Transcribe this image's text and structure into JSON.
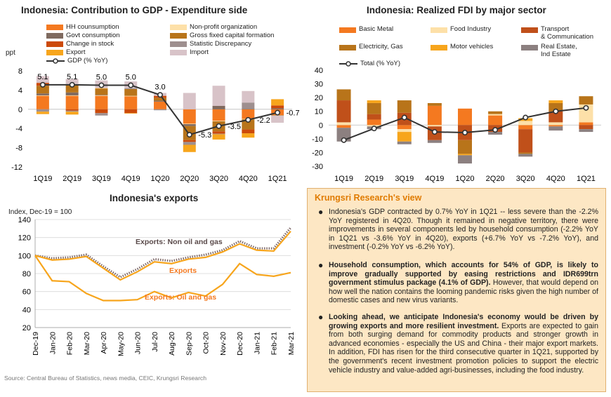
{
  "gdp": {
    "title": "Indonesia: Contribution to GDP - Expenditure side",
    "yunit": "ppt",
    "yticks": [
      8,
      4,
      0,
      -4,
      -8,
      -12
    ],
    "categories": [
      "1Q19",
      "2Q19",
      "3Q19",
      "4Q19",
      "1Q20",
      "2Q20",
      "3Q20",
      "4Q20",
      "1Q21"
    ],
    "legend": [
      {
        "name": "HH counsumption",
        "color": "#f47920"
      },
      {
        "name": "Non-profit organization",
        "color": "#fde0a8"
      },
      {
        "name": "Govt consumption",
        "color": "#7f6a5f"
      },
      {
        "name": "Gross fixed capital formation",
        "color": "#b8741a"
      },
      {
        "name": "Change in stock",
        "color": "#cc4a0a"
      },
      {
        "name": "Statistic Discrepancy",
        "color": "#9e8f8f"
      },
      {
        "name": "Export",
        "color": "#f7a51c"
      },
      {
        "name": "Import",
        "color": "#d8c3c8"
      }
    ],
    "line_legend": "GDP (% YoY)",
    "line_labels": [
      "5.1",
      "5.1",
      "5.0",
      "5.0",
      "3.0",
      "-5.3",
      "-3.5",
      "-2.2",
      "-0.7"
    ]
  },
  "fdi": {
    "title": "Indonesia: Realized FDI by major sector",
    "yticks": [
      40,
      30,
      20,
      10,
      0,
      -10,
      -20,
      -30
    ],
    "categories": [
      "1Q19",
      "2Q19",
      "3Q19",
      "4Q19",
      "1Q20",
      "2Q20",
      "3Q20",
      "4Q20",
      "1Q21"
    ],
    "legend": [
      {
        "name": "Basic Metal",
        "color": "#f47920"
      },
      {
        "name": "Food Industry",
        "color": "#fde0a8"
      },
      {
        "name": "Transport",
        "name2": "& Communication",
        "color": "#c0501a"
      },
      {
        "name": "Electricity, Gas",
        "color": "#b8741a"
      },
      {
        "name": "Motor vehicles",
        "color": "#f7a51c"
      },
      {
        "name": "Real Estate,",
        "name2": "Ind Estate",
        "color": "#8c8080"
      }
    ],
    "line_legend": "Total (% YoY)"
  },
  "exports": {
    "title": "Indonesia's exports",
    "yunit": "Index, Dec-19 = 100",
    "yticks": [
      140,
      120,
      100,
      80,
      60,
      40,
      20
    ],
    "categories": [
      "Dec-19",
      "Jan-20",
      "Feb-20",
      "Mar-20",
      "Apr-20",
      "May-20",
      "Jun-20",
      "Jul-20",
      "Aug-20",
      "Sep-20",
      "Oct-20",
      "Nov-20",
      "Dec-20",
      "Jan-21",
      "Feb-21",
      "Mar-21"
    ],
    "series_labels": [
      "Exports: Non oil and gas",
      "Exports",
      "Exports: Oil and gas"
    ]
  },
  "chart_data": [
    {
      "type": "bar",
      "title": "Indonesia: Contribution to GDP - Expenditure side",
      "ylabel": "ppt",
      "ylim": [
        -12,
        8
      ],
      "categories": [
        "1Q19",
        "2Q19",
        "3Q19",
        "4Q19",
        "1Q20",
        "2Q20",
        "3Q20",
        "4Q20",
        "1Q21"
      ],
      "stacked": true,
      "series": [
        {
          "name": "HH counsumption",
          "color": "#f47920",
          "values": [
            2.8,
            2.8,
            2.8,
            2.7,
            1.6,
            -3.0,
            -2.4,
            -2.0,
            -1.2
          ]
        },
        {
          "name": "Non-profit organization",
          "color": "#fde0a8",
          "values": [
            0.1,
            0.1,
            0.1,
            0.1,
            0.0,
            -0.1,
            -0.1,
            -0.1,
            0.0
          ]
        },
        {
          "name": "Govt consumption",
          "color": "#7f6a5f",
          "values": [
            0.4,
            0.6,
            0.1,
            0.0,
            0.2,
            -0.4,
            0.7,
            0.1,
            0.2
          ]
        },
        {
          "name": "Gross fixed capital formation",
          "color": "#b8741a",
          "values": [
            1.6,
            1.5,
            1.3,
            1.4,
            0.6,
            -2.9,
            -2.1,
            -2.1,
            -0.1
          ]
        },
        {
          "name": "Change in stock",
          "color": "#cc4a0a",
          "values": [
            0.6,
            -0.3,
            -0.8,
            -0.8,
            0.4,
            -0.4,
            -0.5,
            -0.8,
            0.6
          ]
        },
        {
          "name": "Statistic Discrepancy",
          "color": "#9e8f8f",
          "values": [
            -0.5,
            -0.2,
            -0.5,
            0.2,
            -0.2,
            -0.6,
            -0.1,
            1.3,
            0.0
          ]
        },
        {
          "name": "Export",
          "color": "#f7a51c",
          "values": [
            -0.5,
            -0.6,
            0.1,
            -0.1,
            0.0,
            -1.5,
            -1.1,
            -0.9,
            1.3
          ]
        },
        {
          "name": "Import",
          "color": "#d8c3c8",
          "values": [
            1.4,
            1.3,
            1.6,
            1.4,
            0.6,
            3.4,
            4.2,
            2.4,
            -1.5
          ]
        }
      ],
      "line": {
        "name": "GDP (% YoY)",
        "values": [
          5.1,
          5.1,
          5.0,
          5.0,
          3.0,
          -5.3,
          -3.5,
          -2.2,
          -0.7
        ]
      }
    },
    {
      "type": "bar",
      "title": "Indonesia: Realized FDI by major sector",
      "ylim": [
        -30,
        40
      ],
      "categories": [
        "1Q19",
        "2Q19",
        "3Q19",
        "4Q19",
        "1Q20",
        "2Q20",
        "3Q20",
        "4Q20",
        "1Q21"
      ],
      "stacked": true,
      "series": [
        {
          "name": "Basic Metal",
          "color": "#f47920",
          "values": [
            -2,
            4,
            -3,
            14,
            12,
            7,
            -3,
            -1,
            2
          ]
        },
        {
          "name": "Food Industry",
          "color": "#fde0a8",
          "values": [
            2,
            -1,
            -2,
            -1,
            0,
            1,
            3,
            2,
            13
          ]
        },
        {
          "name": "Transport & Communication",
          "color": "#c0501a",
          "values": [
            16,
            4,
            9,
            -10,
            -11,
            -5,
            -17,
            8,
            -3
          ]
        },
        {
          "name": "Electricity, Gas",
          "color": "#b8741a",
          "values": [
            8,
            8,
            9,
            2,
            -10,
            2,
            -1,
            6,
            6
          ]
        },
        {
          "name": "Motor vehicles",
          "color": "#f7a51c",
          "values": [
            0,
            2,
            -7,
            0,
            -1,
            0,
            2,
            2,
            0
          ]
        },
        {
          "name": "Real Estate, Ind Estate",
          "color": "#8c8080",
          "values": [
            -10,
            -2,
            -2,
            -2,
            -6,
            -2,
            -2,
            -3,
            -2
          ]
        }
      ],
      "line": {
        "name": "Total (% YoY)",
        "values": [
          -11,
          -2.5,
          5.5,
          -5,
          -5.5,
          -3.5,
          5.5,
          10,
          12.5
        ]
      }
    },
    {
      "type": "line",
      "title": "Indonesia's exports",
      "ylabel": "Index, Dec-19 = 100",
      "ylim": [
        20,
        140
      ],
      "x": [
        "Dec-19",
        "Jan-20",
        "Feb-20",
        "Mar-20",
        "Apr-20",
        "May-20",
        "Jun-20",
        "Jul-20",
        "Aug-20",
        "Sep-20",
        "Oct-20",
        "Nov-20",
        "Dec-20",
        "Jan-21",
        "Feb-21",
        "Mar-21"
      ],
      "series": [
        {
          "name": "Exports: Non oil and gas",
          "color": "#7f6a6a",
          "dashed": true,
          "values": [
            100,
            97,
            98,
            101,
            88,
            76,
            85,
            96,
            94,
            98,
            101,
            106,
            116,
            108,
            108,
            131
          ]
        },
        {
          "name": "Exports",
          "color": "#f7a51c",
          "values": [
            100,
            95,
            96,
            99,
            86,
            73,
            82,
            93,
            91,
            96,
            98,
            104,
            113,
            106,
            105,
            127
          ]
        },
        {
          "name": "Exports: Oil and gas",
          "color": "#f7a51c",
          "values": [
            100,
            72,
            71,
            58,
            50,
            50,
            51,
            60,
            53,
            59,
            55,
            68,
            91,
            79,
            77,
            81
          ]
        }
      ]
    }
  ],
  "view": {
    "title": "Krungsri Research's view",
    "p1": "Indonesia's GDP contracted by 0.7% YoY in 1Q21 -- less severe than the -2.2% YoY registered in 4Q20. Though it remained in negative territory, there were improvements in several components led by household consumption (-2.2% YoY in 1Q21 vs -3.6% YoY in 4Q20), exports (+6.7% YoY vs -7.2% YoY), and investment (-0.2% YoY vs -6.2% YoY).",
    "p2_bold": "Household consumption, which accounts for 54% of GDP, is likely to improve gradually supported by easing restrictions and IDR699trn government stimulus package (4.1% of GDP).",
    "p2_rest": " However, that would depend on how well the nation contains the looming pandemic risks given the high number of domestic cases and new virus variants.",
    "p3_bold": "Looking ahead, we anticipate Indonesia's economy would be driven by growing exports and more resilient investment.",
    "p3_rest": " Exports are expected to gain from both surging demand for commodity products and stronger growth in advanced economies - especially the US and China - their major export markets. In addition, FDI has risen for the third consecutive quarter in 1Q21, supported by the government's recent investment promotion policies to support the electric vehicle industry and value-added agri-businesses, including the food industry."
  },
  "source": "Source: Central Bureau of Statistics, news media, CEIC, Krungsri Research"
}
